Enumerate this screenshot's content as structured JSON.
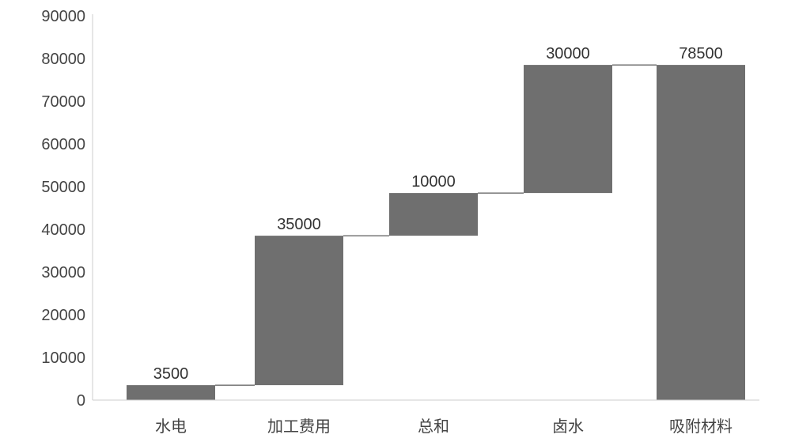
{
  "chart_data": {
    "type": "bar",
    "subtype": "waterfall",
    "categories": [
      "水电",
      "加工费用",
      "总和",
      "卤水",
      "吸附材料"
    ],
    "steps": [
      {
        "category": "水电",
        "start": 0,
        "end": 3500,
        "label": "3500",
        "color": "#6f6f6f"
      },
      {
        "category": "加工费用",
        "start": 3500,
        "end": 38500,
        "label": "35000",
        "color": "#6f6f6f"
      },
      {
        "category": "总和",
        "start": 38500,
        "end": 48500,
        "label": "10000",
        "color": "#6f6f6f"
      },
      {
        "category": "卤水",
        "start": 48500,
        "end": 78500,
        "label": "30000",
        "color": "#6f6f6f"
      },
      {
        "category": "吸附材料",
        "start": 0,
        "end": 78500,
        "label": "78500",
        "color": "#6f6f6f"
      }
    ],
    "ylim": [
      0,
      90000
    ],
    "yticks": [
      "0",
      "10000",
      "20000",
      "30000",
      "40000",
      "50000",
      "60000",
      "70000",
      "80000",
      "90000"
    ],
    "connector_color": "#333333",
    "grid": false,
    "title": "",
    "xlabel": "",
    "ylabel": ""
  }
}
